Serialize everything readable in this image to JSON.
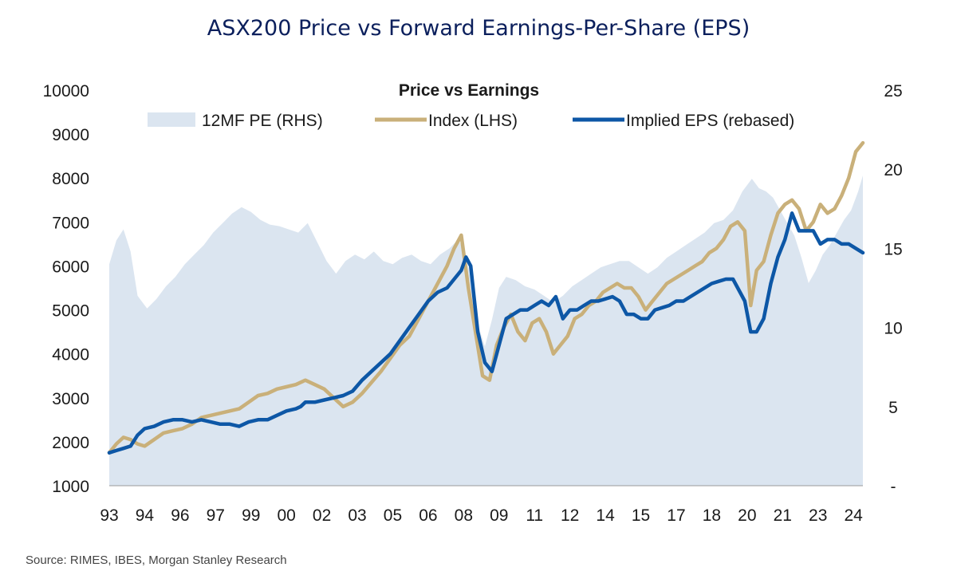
{
  "page_title": "ASX200 Price vs Forward Earnings-Per-Share (EPS)",
  "source": "Source: RIMES, IBES, Morgan Stanley Research",
  "colors": {
    "pe_area": "#dbe5f0",
    "index_line": "#c9b07a",
    "eps_line": "#0d57a6",
    "title": "#0b1f5c"
  },
  "chart_data": {
    "type": "line",
    "title": "Price vs Earnings",
    "legend": [
      {
        "label": "12MF PE (RHS)",
        "kind": "area"
      },
      {
        "label": "Index (LHS)",
        "kind": "line"
      },
      {
        "label": "Implied EPS (rebased)",
        "kind": "line"
      }
    ],
    "legend_position": "top",
    "x_range": [
      1993,
      2024.9
    ],
    "x_tick_labels": [
      {
        "year": 1993.0,
        "label": "93"
      },
      {
        "year": 1994.5,
        "label": "94"
      },
      {
        "year": 1996.0,
        "label": "96"
      },
      {
        "year": 1997.5,
        "label": "97"
      },
      {
        "year": 1999.0,
        "label": "99"
      },
      {
        "year": 2000.5,
        "label": "00"
      },
      {
        "year": 2002.0,
        "label": "02"
      },
      {
        "year": 2003.5,
        "label": "03"
      },
      {
        "year": 2005.0,
        "label": "05"
      },
      {
        "year": 2006.5,
        "label": "06"
      },
      {
        "year": 2008.0,
        "label": "08"
      },
      {
        "year": 2009.5,
        "label": "09"
      },
      {
        "year": 2011.0,
        "label": "11"
      },
      {
        "year": 2012.5,
        "label": "12"
      },
      {
        "year": 2014.0,
        "label": "14"
      },
      {
        "year": 2015.5,
        "label": "15"
      },
      {
        "year": 2017.0,
        "label": "17"
      },
      {
        "year": 2018.5,
        "label": "18"
      },
      {
        "year": 2020.0,
        "label": "20"
      },
      {
        "year": 2021.5,
        "label": "21"
      },
      {
        "year": 2023.0,
        "label": "23"
      },
      {
        "year": 2024.5,
        "label": "24"
      }
    ],
    "y_left": {
      "min": 1000,
      "max": 10000,
      "ticks": [
        "1000",
        "2000",
        "3000",
        "4000",
        "5000",
        "6000",
        "7000",
        "8000",
        "9000",
        "10000"
      ]
    },
    "y_right": {
      "min": 0,
      "max": 25,
      "ticks": [
        {
          "value": 0,
          "label": "-"
        },
        {
          "value": 5,
          "label": "5"
        },
        {
          "value": 10,
          "label": "10"
        },
        {
          "value": 15,
          "label": "15"
        },
        {
          "value": 20,
          "label": "20"
        },
        {
          "value": 25,
          "label": "25"
        }
      ]
    },
    "series": [
      {
        "name": "12MF PE (RHS)",
        "axis": "right",
        "x": [
          1993.0,
          1993.3,
          1993.6,
          1993.9,
          1994.2,
          1994.6,
          1995.0,
          1995.4,
          1995.8,
          1996.2,
          1996.6,
          1997.0,
          1997.4,
          1997.8,
          1998.2,
          1998.6,
          1999.0,
          1999.4,
          1999.8,
          2000.2,
          2000.6,
          2001.0,
          2001.4,
          2001.8,
          2002.2,
          2002.6,
          2003.0,
          2003.4,
          2003.8,
          2004.2,
          2004.6,
          2005.0,
          2005.4,
          2005.8,
          2006.2,
          2006.6,
          2007.0,
          2007.4,
          2007.8,
          2008.2,
          2008.6,
          2008.9,
          2009.2,
          2009.5,
          2009.8,
          2010.2,
          2010.6,
          2011.0,
          2011.4,
          2011.8,
          2012.2,
          2012.6,
          2013.0,
          2013.4,
          2013.8,
          2014.2,
          2014.6,
          2015.0,
          2015.4,
          2015.8,
          2016.2,
          2016.6,
          2017.0,
          2017.4,
          2017.8,
          2018.2,
          2018.6,
          2019.0,
          2019.4,
          2019.8,
          2020.2,
          2020.5,
          2020.8,
          2021.1,
          2021.4,
          2021.7,
          2022.0,
          2022.3,
          2022.6,
          2022.9,
          2023.2,
          2023.5,
          2023.8,
          2024.1,
          2024.4,
          2024.7,
          2024.9
        ],
        "values": [
          14.0,
          15.5,
          16.2,
          14.8,
          12.0,
          11.2,
          11.8,
          12.6,
          13.2,
          14.0,
          14.6,
          15.2,
          16.0,
          16.6,
          17.2,
          17.6,
          17.3,
          16.8,
          16.5,
          16.4,
          16.2,
          16.0,
          16.6,
          15.4,
          14.2,
          13.4,
          14.2,
          14.6,
          14.3,
          14.8,
          14.2,
          14.0,
          14.4,
          14.6,
          14.2,
          14.0,
          14.6,
          15.0,
          15.6,
          13.8,
          10.2,
          8.8,
          10.5,
          12.5,
          13.2,
          13.0,
          12.6,
          12.4,
          12.0,
          11.6,
          12.0,
          12.6,
          13.0,
          13.4,
          13.8,
          14.0,
          14.2,
          14.2,
          13.8,
          13.4,
          13.8,
          14.4,
          14.8,
          15.2,
          15.6,
          16.0,
          16.6,
          16.8,
          17.4,
          18.6,
          19.4,
          18.8,
          18.6,
          18.2,
          17.4,
          16.6,
          15.8,
          14.4,
          12.8,
          13.6,
          14.6,
          15.2,
          16.0,
          16.8,
          17.4,
          18.6,
          19.6
        ]
      },
      {
        "name": "Index (LHS)",
        "axis": "left",
        "x": [
          1993.0,
          1993.3,
          1993.6,
          1993.9,
          1994.2,
          1994.5,
          1994.9,
          1995.3,
          1995.7,
          1996.1,
          1996.5,
          1996.9,
          1997.3,
          1997.7,
          1998.1,
          1998.5,
          1998.9,
          1999.3,
          1999.7,
          2000.1,
          2000.5,
          2000.9,
          2001.3,
          2001.7,
          2002.1,
          2002.5,
          2002.9,
          2003.3,
          2003.7,
          2004.1,
          2004.5,
          2004.9,
          2005.3,
          2005.7,
          2006.1,
          2006.5,
          2006.9,
          2007.3,
          2007.6,
          2007.9,
          2008.2,
          2008.5,
          2008.8,
          2009.1,
          2009.4,
          2009.7,
          2010.0,
          2010.3,
          2010.6,
          2010.9,
          2011.2,
          2011.5,
          2011.8,
          2012.1,
          2012.4,
          2012.7,
          2013.0,
          2013.3,
          2013.6,
          2013.9,
          2014.2,
          2014.5,
          2014.8,
          2015.1,
          2015.4,
          2015.7,
          2016.0,
          2016.3,
          2016.6,
          2016.9,
          2017.2,
          2017.5,
          2017.8,
          2018.1,
          2018.4,
          2018.7,
          2019.0,
          2019.3,
          2019.6,
          2019.9,
          2020.15,
          2020.4,
          2020.7,
          2021.0,
          2021.3,
          2021.6,
          2021.9,
          2022.2,
          2022.5,
          2022.8,
          2023.1,
          2023.4,
          2023.7,
          2024.0,
          2024.3,
          2024.6,
          2024.9
        ],
        "values": [
          1750,
          1950,
          2100,
          2050,
          1950,
          1900,
          2050,
          2200,
          2250,
          2300,
          2400,
          2550,
          2600,
          2650,
          2700,
          2750,
          2900,
          3050,
          3100,
          3200,
          3250,
          3300,
          3400,
          3300,
          3200,
          3000,
          2800,
          2900,
          3100,
          3350,
          3600,
          3900,
          4200,
          4400,
          4800,
          5200,
          5600,
          6000,
          6400,
          6700,
          5500,
          4500,
          3500,
          3400,
          4200,
          4600,
          4900,
          4500,
          4300,
          4700,
          4800,
          4500,
          4000,
          4200,
          4400,
          4800,
          4900,
          5100,
          5200,
          5400,
          5500,
          5600,
          5500,
          5500,
          5300,
          5000,
          5200,
          5400,
          5600,
          5700,
          5800,
          5900,
          6000,
          6100,
          6300,
          6400,
          6600,
          6900,
          7000,
          6800,
          5100,
          5900,
          6100,
          6700,
          7200,
          7400,
          7500,
          7300,
          6800,
          7000,
          7400,
          7200,
          7300,
          7600,
          8000,
          8600,
          8800
        ]
      },
      {
        "name": "Implied EPS (rebased)",
        "axis": "left",
        "x": [
          1993.0,
          1993.3,
          1993.6,
          1993.9,
          1994.2,
          1994.5,
          1994.9,
          1995.3,
          1995.7,
          1996.1,
          1996.5,
          1996.9,
          1997.3,
          1997.7,
          1998.1,
          1998.5,
          1998.9,
          1999.3,
          1999.7,
          2000.1,
          2000.5,
          2000.9,
          2001.1,
          2001.3,
          2001.7,
          2002.1,
          2002.5,
          2002.9,
          2003.3,
          2003.7,
          2004.1,
          2004.5,
          2004.9,
          2005.3,
          2005.7,
          2006.1,
          2006.5,
          2006.9,
          2007.3,
          2007.6,
          2007.9,
          2008.1,
          2008.3,
          2008.6,
          2008.9,
          2009.2,
          2009.5,
          2009.8,
          2010.1,
          2010.4,
          2010.7,
          2011.0,
          2011.3,
          2011.6,
          2011.9,
          2012.2,
          2012.5,
          2012.8,
          2013.1,
          2013.4,
          2013.7,
          2014.0,
          2014.3,
          2014.6,
          2014.9,
          2015.2,
          2015.5,
          2015.8,
          2016.1,
          2016.4,
          2016.7,
          2017.0,
          2017.3,
          2017.6,
          2017.9,
          2018.2,
          2018.5,
          2018.8,
          2019.1,
          2019.4,
          2019.7,
          2019.9,
          2020.15,
          2020.4,
          2020.7,
          2021.0,
          2021.3,
          2021.6,
          2021.9,
          2022.2,
          2022.5,
          2022.8,
          2023.1,
          2023.4,
          2023.7,
          2024.0,
          2024.3,
          2024.6,
          2024.9
        ],
        "values": [
          1750,
          1800,
          1850,
          1900,
          2150,
          2300,
          2350,
          2450,
          2500,
          2500,
          2450,
          2500,
          2450,
          2400,
          2400,
          2350,
          2450,
          2500,
          2500,
          2600,
          2700,
          2750,
          2800,
          2900,
          2900,
          2950,
          3000,
          3050,
          3150,
          3400,
          3600,
          3800,
          4000,
          4300,
          4600,
          4900,
          5200,
          5400,
          5500,
          5700,
          5900,
          6200,
          6000,
          4500,
          3800,
          3600,
          4200,
          4800,
          4900,
          5000,
          5000,
          5100,
          5200,
          5100,
          5300,
          4800,
          5000,
          5000,
          5100,
          5200,
          5200,
          5250,
          5300,
          5200,
          4900,
          4900,
          4800,
          4800,
          5000,
          5050,
          5100,
          5200,
          5200,
          5300,
          5400,
          5500,
          5600,
          5650,
          5700,
          5700,
          5400,
          5200,
          4500,
          4500,
          4800,
          5600,
          6200,
          6600,
          7200,
          6800,
          6800,
          6800,
          6500,
          6600,
          6600,
          6500,
          6500,
          6400,
          6300
        ]
      }
    ]
  }
}
